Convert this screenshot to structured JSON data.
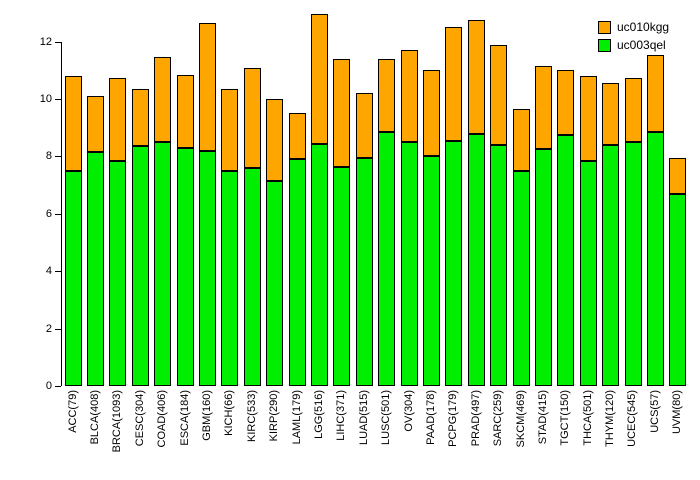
{
  "chart_data": {
    "type": "bar",
    "stacked": true,
    "title": "",
    "xlabel": "",
    "ylabel": "",
    "ylim": [
      0,
      13
    ],
    "yticks": [
      0,
      2,
      4,
      6,
      8,
      10,
      12
    ],
    "grid": false,
    "legend_position": "top-right",
    "categories": [
      "ACC(79)",
      "BLCA(408)",
      "BRCA(1093)",
      "CESC(304)",
      "COAD(406)",
      "ESCA(184)",
      "GBM(160)",
      "KICH(66)",
      "KIRC(533)",
      "KIRP(290)",
      "LAML(179)",
      "LGG(516)",
      "LIHC(371)",
      "LUAD(515)",
      "LUSC(501)",
      "OV(304)",
      "PAAD(178)",
      "PCPG(179)",
      "PRAD(497)",
      "SARC(259)",
      "SKCM(469)",
      "STAD(415)",
      "TGCT(150)",
      "THCA(501)",
      "THYM(120)",
      "UCEC(545)",
      "UCS(57)",
      "UVM(80)"
    ],
    "series": [
      {
        "name": "uc003qel",
        "color": "#00EE00",
        "values": [
          7.5,
          8.15,
          7.85,
          8.35,
          8.5,
          8.3,
          8.2,
          7.5,
          7.6,
          7.15,
          7.9,
          8.45,
          7.65,
          7.95,
          8.85,
          8.5,
          8.0,
          8.55,
          8.8,
          8.4,
          7.5,
          8.25,
          8.75,
          7.85,
          8.4,
          8.5,
          8.85,
          6.7
        ]
      },
      {
        "name": "uc010kgg",
        "color": "#FFA500",
        "values": [
          3.3,
          1.95,
          2.9,
          2.0,
          2.95,
          2.55,
          4.45,
          2.85,
          3.5,
          2.85,
          1.6,
          4.5,
          3.75,
          2.25,
          2.55,
          3.2,
          3.0,
          3.95,
          3.95,
          3.5,
          2.15,
          2.9,
          2.25,
          2.95,
          2.15,
          2.25,
          2.7,
          1.25
        ]
      }
    ]
  },
  "legend": {
    "items": [
      {
        "label": "uc010kgg",
        "color": "#FFA500"
      },
      {
        "label": "uc003qel",
        "color": "#00EE00"
      }
    ]
  }
}
